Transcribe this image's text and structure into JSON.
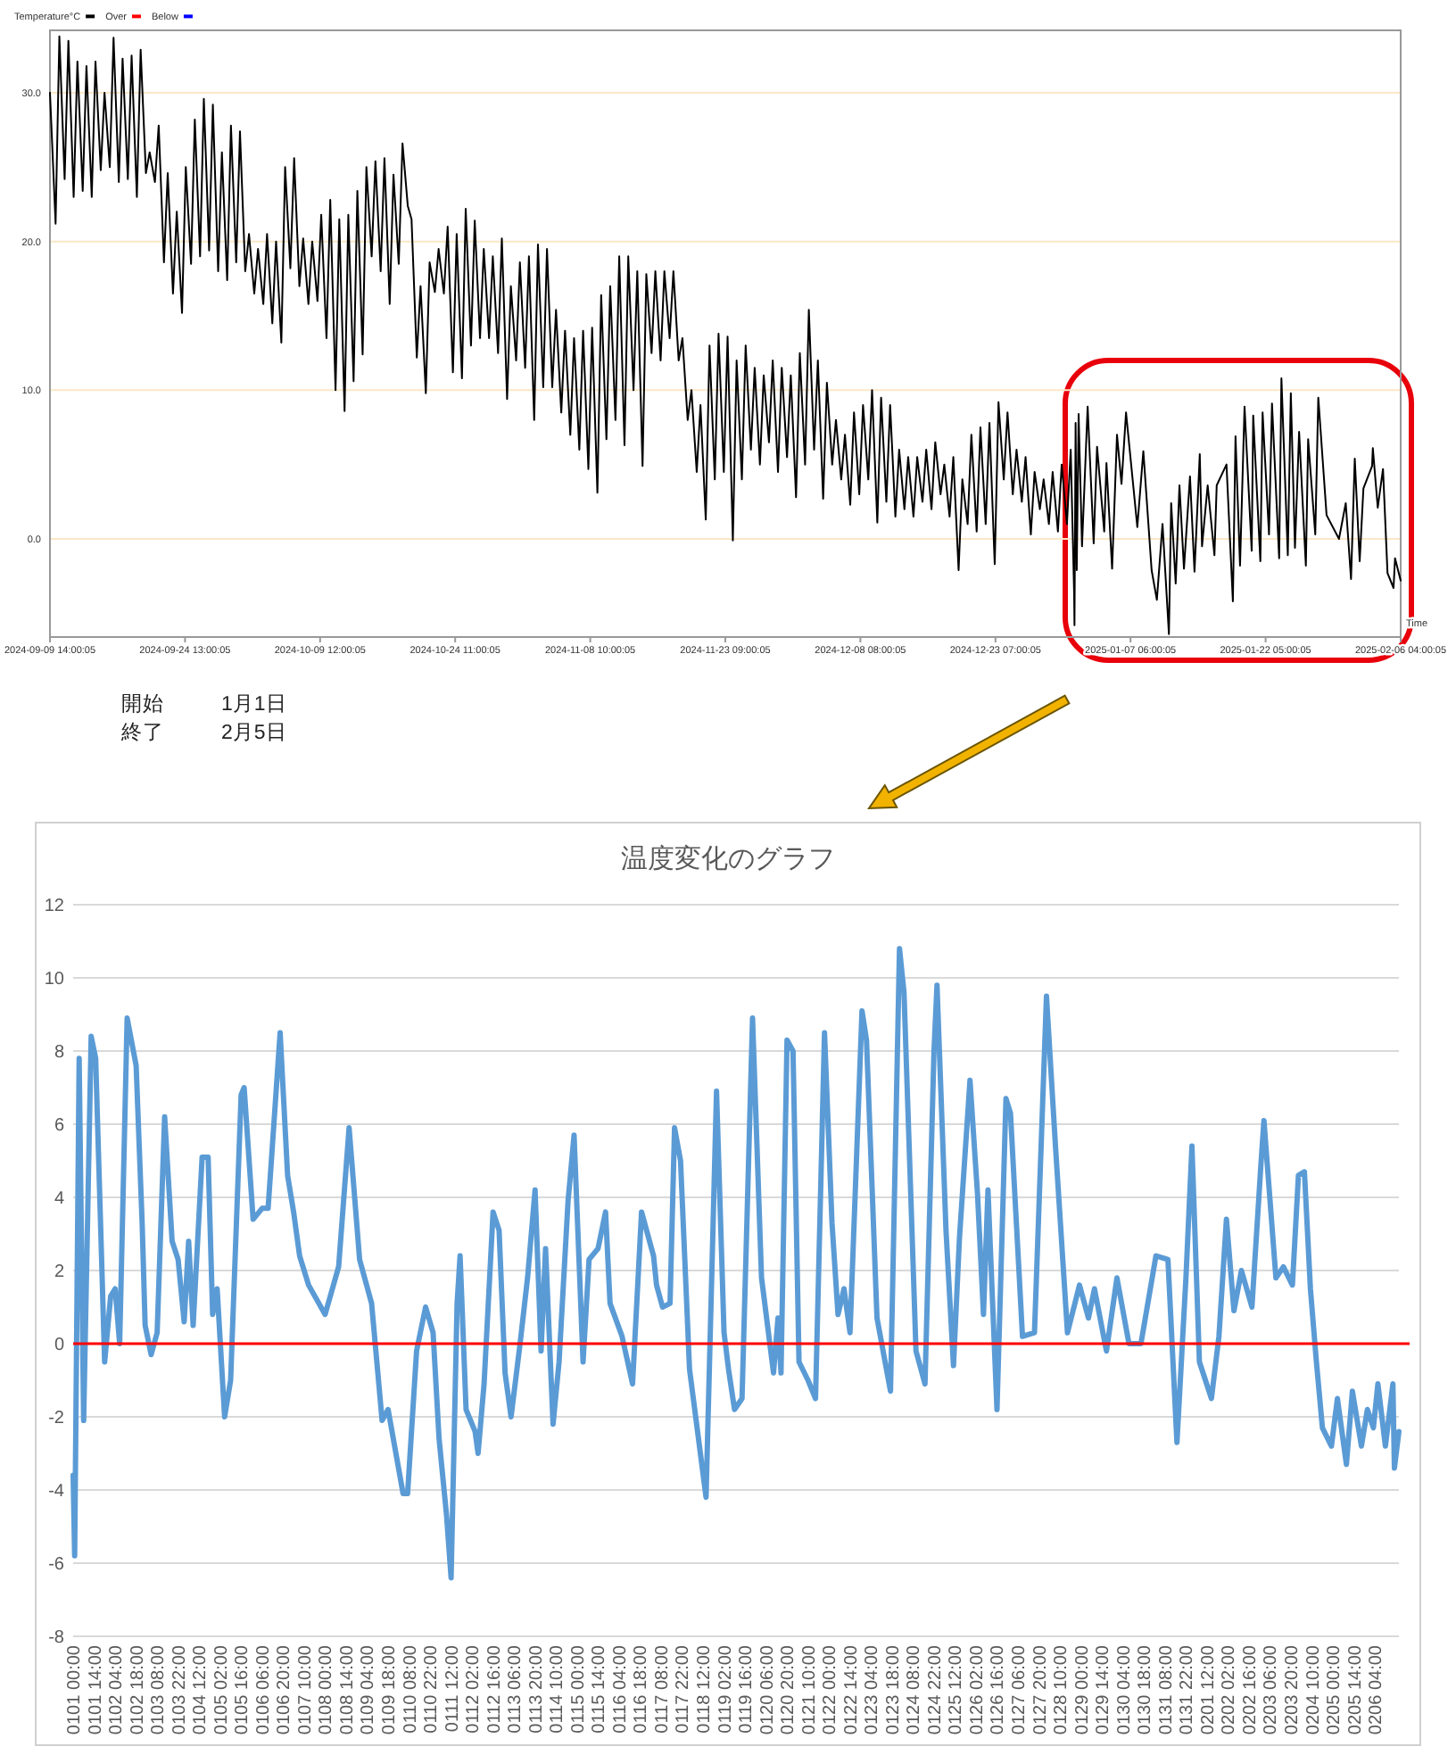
{
  "chart_data": [
    {
      "type": "line",
      "legend": "top left",
      "xlabel": "Time",
      "grid": "y",
      "xlim": [
        "2024-09-09T14:00",
        "2025-02-06T04:00"
      ],
      "xticks": [
        {
          "value": "2024-09-09T14:00",
          "label": "2024-09-09 14:00:05"
        },
        {
          "value": "2024-09-24T13:00",
          "label": "2024-09-24 13:00:05"
        },
        {
          "value": "2024-10-09T12:00",
          "label": "2024-10-09 12:00:05"
        },
        {
          "value": "2024-10-24T11:00",
          "label": "2024-10-24 11:00:05"
        },
        {
          "value": "2024-11-08T10:00",
          "label": "2024-11-08 10:00:05"
        },
        {
          "value": "2024-11-23T09:00",
          "label": "2024-11-23 09:00:05"
        },
        {
          "value": "2024-12-08T08:00",
          "label": "2024-12-08 08:00:05"
        },
        {
          "value": "2024-12-23T07:00",
          "label": "2024-12-23 07:00:05"
        },
        {
          "value": "2025-01-07T06:00",
          "label": "2025-01-07 06:00:05"
        },
        {
          "value": "2025-01-22T05:00",
          "label": "2025-01-22 05:00:05"
        },
        {
          "value": "2025-02-06T04:00",
          "label": "2025-02-06 04:00:05"
        }
      ],
      "ylim": [
        -6.6,
        34.2
      ],
      "yticks": [
        {
          "value": 0,
          "label": "0.0"
        },
        {
          "value": 10,
          "label": "10.0"
        },
        {
          "value": 20,
          "label": "20.0"
        },
        {
          "value": 30,
          "label": "30.0"
        }
      ],
      "series": [
        {
          "name": "Temperature°C",
          "color": "#000000",
          "x": [
            "2024-09-09T14:00",
            "2024-09-10T05:00",
            "2024-09-10T15:00",
            "2024-09-11T05:00",
            "2024-09-11T15:00",
            "2024-09-12T05:00",
            "2024-09-12T15:00",
            "2024-09-13T05:00",
            "2024-09-13T15:00",
            "2024-09-14T05:00",
            "2024-09-14T15:00",
            "2024-09-15T05:00",
            "2024-09-15T15:00",
            "2024-09-16T05:00",
            "2024-09-16T15:00",
            "2024-09-17T05:00",
            "2024-09-17T15:00",
            "2024-09-18T05:00",
            "2024-09-18T15:00",
            "2024-09-19T05:00",
            "2024-09-19T15:00",
            "2024-09-20T05:00",
            "2024-09-20T15:00",
            "2024-09-21T05:00",
            "2024-09-21T15:00",
            "2024-09-22T05:00",
            "2024-09-22T15:00",
            "2024-09-23T05:00",
            "2024-09-23T15:00",
            "2024-09-24T05:00",
            "2024-09-24T15:00",
            "2024-09-25T05:00",
            "2024-09-25T15:00",
            "2024-09-26T05:00",
            "2024-09-26T15:00",
            "2024-09-27T05:00",
            "2024-09-27T15:00",
            "2024-09-28T05:00",
            "2024-09-28T15:00",
            "2024-09-29T05:00",
            "2024-09-29T15:00",
            "2024-09-30T05:00",
            "2024-09-30T15:00",
            "2024-10-01T05:00",
            "2024-10-01T15:00",
            "2024-10-02T05:00",
            "2024-10-02T15:00",
            "2024-10-03T05:00",
            "2024-10-03T15:00",
            "2024-10-04T05:00",
            "2024-10-04T15:00",
            "2024-10-05T05:00",
            "2024-10-05T15:00",
            "2024-10-06T05:00",
            "2024-10-06T15:00",
            "2024-10-07T05:00",
            "2024-10-07T15:00",
            "2024-10-08T05:00",
            "2024-10-08T15:00",
            "2024-10-09T05:00",
            "2024-10-09T15:00",
            "2024-10-10T05:00",
            "2024-10-10T15:00",
            "2024-10-11T05:00",
            "2024-10-11T15:00",
            "2024-10-12T05:00",
            "2024-10-12T15:00",
            "2024-10-13T05:00",
            "2024-10-13T15:00",
            "2024-10-14T05:00",
            "2024-10-14T15:00",
            "2024-10-15T05:00",
            "2024-10-15T15:00",
            "2024-10-16T05:00",
            "2024-10-16T15:00",
            "2024-10-17T05:00",
            "2024-10-17T15:00",
            "2024-10-18T05:00",
            "2024-10-18T15:00",
            "2024-10-19T05:00",
            "2024-10-19T15:00",
            "2024-10-20T05:00",
            "2024-10-20T15:00",
            "2024-10-21T05:00",
            "2024-10-21T15:00",
            "2024-10-22T05:00",
            "2024-10-22T15:00",
            "2024-10-23T05:00",
            "2024-10-23T15:00",
            "2024-10-24T05:00",
            "2024-10-24T15:00",
            "2024-10-25T05:00",
            "2024-10-25T15:00",
            "2024-10-26T05:00",
            "2024-10-26T15:00",
            "2024-10-27T05:00",
            "2024-10-27T15:00",
            "2024-10-28T05:00",
            "2024-10-28T15:00",
            "2024-10-29T05:00",
            "2024-10-29T15:00",
            "2024-10-30T05:00",
            "2024-10-30T15:00",
            "2024-10-31T05:00",
            "2024-10-31T15:00",
            "2024-11-01T05:00",
            "2024-11-01T15:00",
            "2024-11-02T05:00",
            "2024-11-02T15:00",
            "2024-11-03T05:00",
            "2024-11-03T15:00",
            "2024-11-04T05:00",
            "2024-11-04T15:00",
            "2024-11-05T05:00",
            "2024-11-05T15:00",
            "2024-11-06T05:00",
            "2024-11-06T15:00",
            "2024-11-07T05:00",
            "2024-11-07T15:00",
            "2024-11-08T05:00",
            "2024-11-08T15:00",
            "2024-11-09T05:00",
            "2024-11-09T15:00",
            "2024-11-10T05:00",
            "2024-11-10T15:00",
            "2024-11-11T05:00",
            "2024-11-11T15:00",
            "2024-11-12T05:00",
            "2024-11-12T15:00",
            "2024-11-13T05:00",
            "2024-11-13T15:00",
            "2024-11-14T05:00",
            "2024-11-14T15:00",
            "2024-11-15T05:00",
            "2024-11-15T15:00",
            "2024-11-16T05:00",
            "2024-11-16T15:00",
            "2024-11-17T05:00",
            "2024-11-17T15:00",
            "2024-11-18T05:00",
            "2024-11-18T15:00",
            "2024-11-19T05:00",
            "2024-11-19T15:00",
            "2024-11-20T05:00",
            "2024-11-20T15:00",
            "2024-11-21T05:00",
            "2024-11-21T15:00",
            "2024-11-22T05:00",
            "2024-11-22T15:00",
            "2024-11-23T05:00",
            "2024-11-23T15:00",
            "2024-11-24T05:00",
            "2024-11-24T15:00",
            "2024-11-25T05:00",
            "2024-11-25T15:00",
            "2024-11-26T05:00",
            "2024-11-26T15:00",
            "2024-11-27T05:00",
            "2024-11-27T15:00",
            "2024-11-28T05:00",
            "2024-11-28T15:00",
            "2024-11-29T05:00",
            "2024-11-29T15:00",
            "2024-11-30T05:00",
            "2024-11-30T15:00",
            "2024-12-01T05:00",
            "2024-12-01T15:00",
            "2024-12-02T05:00",
            "2024-12-02T15:00",
            "2024-12-03T05:00",
            "2024-12-03T15:00",
            "2024-12-04T05:00",
            "2024-12-04T15:00",
            "2024-12-05T05:00",
            "2024-12-05T15:00",
            "2024-12-06T05:00",
            "2024-12-06T15:00",
            "2024-12-07T05:00",
            "2024-12-07T15:00",
            "2024-12-08T05:00",
            "2024-12-08T15:00",
            "2024-12-09T05:00",
            "2024-12-09T15:00",
            "2024-12-10T05:00",
            "2024-12-10T15:00",
            "2024-12-11T05:00",
            "2024-12-11T15:00",
            "2024-12-12T05:00",
            "2024-12-12T15:00",
            "2024-12-13T05:00",
            "2024-12-13T15:00",
            "2024-12-14T05:00",
            "2024-12-14T15:00",
            "2024-12-15T05:00",
            "2024-12-15T15:00",
            "2024-12-16T05:00",
            "2024-12-16T15:00",
            "2024-12-17T05:00",
            "2024-12-17T15:00",
            "2024-12-18T05:00",
            "2024-12-18T15:00",
            "2024-12-19T05:00",
            "2024-12-19T15:00",
            "2024-12-20T05:00",
            "2024-12-20T15:00",
            "2024-12-21T05:00",
            "2024-12-21T15:00",
            "2024-12-22T05:00",
            "2024-12-22T15:00",
            "2024-12-23T05:00",
            "2024-12-23T15:00",
            "2024-12-24T05:00",
            "2024-12-24T15:00",
            "2024-12-25T05:00",
            "2024-12-25T15:00",
            "2024-12-26T05:00",
            "2024-12-26T15:00",
            "2024-12-27T05:00",
            "2024-12-27T15:00",
            "2024-12-28T05:00",
            "2024-12-28T15:00",
            "2024-12-29T05:00",
            "2024-12-29T15:00",
            "2024-12-30T05:00",
            "2024-12-30T15:00",
            "2024-12-31T05:00",
            "2024-12-31T15:00",
            "2025-01-01T00:00",
            "2025-01-01T01:00",
            "2025-01-01T04:00",
            "2025-01-01T07:00",
            "2025-01-01T12:00",
            "2025-01-01T21:00",
            "2025-01-02T12:00",
            "2025-01-03T04:00",
            "2025-01-03T13:00",
            "2025-01-04T08:00",
            "2025-01-04T14:00",
            "2025-01-05T05:00",
            "2025-01-05T18:00",
            "2025-01-06T06:00",
            "2025-01-06T18:00",
            "2025-01-08T00:00",
            "2025-01-08T16:00",
            "2025-01-09T14:00",
            "2025-01-10T04:00",
            "2025-01-10T19:00",
            "2025-01-11T12:00",
            "2025-01-11T18:00",
            "2025-01-12T06:00",
            "2025-01-12T16:00",
            "2025-01-13T04:00",
            "2025-01-13T20:00",
            "2025-01-14T08:00",
            "2025-01-14T22:00",
            "2025-01-15T04:00",
            "2025-01-15T19:00",
            "2025-01-16T13:00",
            "2025-01-16T19:00",
            "2025-01-17T21:00",
            "2025-01-18T14:00",
            "2025-01-18T21:00",
            "2025-01-19T09:00",
            "2025-01-19T21:00",
            "2025-01-20T16:00",
            "2025-01-20T20:00",
            "2025-01-21T15:00",
            "2025-01-21T21:00",
            "2025-01-22T14:00",
            "2025-01-22T22:00",
            "2025-01-23T17:00",
            "2025-01-23T23:00",
            "2025-01-24T16:00",
            "2025-01-25T00:00",
            "2025-01-25T11:00",
            "2025-01-25T22:00",
            "2025-01-26T16:00",
            "2025-01-26T22:00",
            "2025-01-27T17:00",
            "2025-01-28T01:00",
            "2025-01-28T23:00",
            "2025-01-30T08:00",
            "2025-01-31T02:00",
            "2025-01-31T16:00",
            "2025-02-01T02:00",
            "2025-02-01T15:00",
            "2025-02-02T01:00",
            "2025-02-03T00:00",
            "2025-02-03T02:00",
            "2025-02-03T15:00",
            "2025-02-04T05:00",
            "2025-02-04T17:00",
            "2025-02-05T09:00",
            "2025-02-05T13:00",
            "2025-02-06T04:00"
          ],
          "values": [
            30.0,
            21.2,
            33.8,
            24.2,
            33.5,
            23.0,
            32.1,
            23.4,
            31.8,
            23.0,
            32.1,
            24.8,
            30.0,
            25.0,
            33.7,
            24.0,
            32.3,
            24.2,
            32.5,
            23.0,
            32.9,
            24.6,
            26.0,
            24.0,
            27.8,
            18.6,
            24.6,
            16.5,
            22.0,
            15.2,
            25.0,
            18.5,
            28.2,
            19.0,
            29.6,
            19.4,
            29.2,
            18.0,
            26.0,
            17.4,
            27.8,
            18.6,
            27.4,
            18.0,
            20.5,
            16.5,
            19.5,
            15.8,
            20.5,
            14.5,
            20.0,
            13.2,
            25.0,
            18.2,
            25.6,
            17.0,
            20.2,
            15.8,
            20.0,
            16.0,
            21.8,
            13.5,
            22.8,
            10.0,
            21.5,
            8.6,
            21.8,
            10.6,
            23.4,
            12.4,
            25.0,
            19.0,
            25.4,
            18.0,
            25.6,
            15.8,
            24.5,
            18.5,
            26.6,
            22.4,
            21.5,
            12.2,
            17.0,
            9.8,
            18.6,
            16.6,
            19.5,
            16.5,
            21.0,
            11.2,
            20.5,
            10.8,
            22.2,
            13.0,
            21.4,
            13.5,
            19.5,
            13.5,
            19.0,
            12.5,
            20.2,
            9.4,
            17.0,
            12.0,
            18.6,
            11.5,
            19.0,
            8.0,
            19.8,
            10.2,
            19.5,
            10.2,
            15.4,
            8.5,
            14.0,
            7.0,
            13.5,
            6.0,
            14.0,
            4.7,
            14.2,
            3.1,
            16.4,
            6.7,
            17.0,
            8.0,
            19.0,
            6.3,
            19.0,
            10.0,
            18.0,
            4.9,
            17.8,
            12.5,
            18.0,
            12.0,
            18.0,
            13.5,
            18.0,
            12.0,
            13.5,
            8.0,
            10.0,
            4.5,
            9.0,
            1.3,
            13.0,
            4.0,
            13.8,
            4.5,
            13.6,
            -0.1,
            12.0,
            4.0,
            13.0,
            6.0,
            11.5,
            5.0,
            11.0,
            6.5,
            12.0,
            4.5,
            11.5,
            5.5,
            11.0,
            2.8,
            12.5,
            5.0,
            15.4,
            6.0,
            12.0,
            2.7,
            10.5,
            5.0,
            8.0,
            4.0,
            7.0,
            2.3,
            8.5,
            3.0,
            9.0,
            4.0,
            10.0,
            1.1,
            9.5,
            2.5,
            9.0,
            1.5,
            6.0,
            2.0,
            5.5,
            1.5,
            5.5,
            2.5,
            6.0,
            2.0,
            6.5,
            3.0,
            5.0,
            1.5,
            5.5,
            -2.1,
            4.0,
            1.0,
            7.0,
            0.5,
            7.5,
            1.0,
            7.8,
            -1.7,
            9.2,
            4.0,
            8.5,
            3.0,
            6.0,
            2.5,
            5.5,
            0.3,
            4.5,
            2.0,
            4.0,
            1.0,
            4.5,
            0.5,
            5.0,
            1.0,
            6.0,
            -3.6,
            -5.8,
            7.8,
            -2.1,
            8.4,
            -0.5,
            8.9,
            -0.3,
            6.2,
            0.5,
            5.1,
            -2.0,
            7.0,
            3.7,
            8.5,
            0.8,
            5.9,
            -2.1,
            -4.1,
            1.0,
            -6.4,
            2.4,
            -3.0,
            3.6,
            -2.0,
            4.2,
            -2.2,
            5.7,
            -0.5,
            3.6,
            -1.1,
            3.6,
            5.0,
            -4.2,
            6.9,
            -1.8,
            8.9,
            -0.8,
            8.3,
            -1.5,
            8.5,
            0.3,
            9.1,
            -1.3,
            10.8,
            -1.1,
            9.8,
            -0.6,
            7.2,
            -1.8,
            6.7,
            0.3,
            9.5,
            1.6,
            0.0,
            2.4,
            -2.7,
            5.4,
            -1.5,
            3.4,
            4.9,
            6.1,
            2.1,
            4.7,
            -2.3,
            -3.3,
            -1.3,
            -2.8
          ]
        },
        {
          "name": "Over",
          "color": "#ff0000"
        },
        {
          "name": "Below",
          "color": "#0000ff"
        }
      ]
    },
    {
      "type": "line",
      "title": "温度変化のグラフ",
      "grid": "y",
      "annotations": [
        "開始",
        "1月1日",
        "終了",
        "2月5日"
      ],
      "xlim": [
        "--01-01T00:00",
        "--02-06T20:00"
      ],
      "xticks": [
        {
          "value": "--01-01T00:00",
          "label": "0101 00:00"
        },
        {
          "value": "--01-01T14:00",
          "label": "0101 14:00"
        },
        {
          "value": "--01-02T04:00",
          "label": "0102 04:00"
        },
        {
          "value": "--01-02T18:00",
          "label": "0102 18:00"
        },
        {
          "value": "--01-03T08:00",
          "label": "0103 08:00"
        },
        {
          "value": "--01-03T22:00",
          "label": "0103 22:00"
        },
        {
          "value": "--01-04T12:00",
          "label": "0104 12:00"
        },
        {
          "value": "--01-05T02:00",
          "label": "0105 02:00"
        },
        {
          "value": "--01-05T16:00",
          "label": "0105 16:00"
        },
        {
          "value": "--01-06T06:00",
          "label": "0106 06:00"
        },
        {
          "value": "--01-06T20:00",
          "label": "0106 20:00"
        },
        {
          "value": "--01-07T10:00",
          "label": "0107 10:00"
        },
        {
          "value": "--01-08T00:00",
          "label": "0108 00:00"
        },
        {
          "value": "--01-08T14:00",
          "label": "0108 14:00"
        },
        {
          "value": "--01-09T04:00",
          "label": "0109 04:00"
        },
        {
          "value": "--01-09T18:00",
          "label": "0109 18:00"
        },
        {
          "value": "--01-10T08:00",
          "label": "0110 08:00"
        },
        {
          "value": "--01-10T22:00",
          "label": "0110 22:00"
        },
        {
          "value": "--01-11T12:00",
          "label": "0111 12:00"
        },
        {
          "value": "--01-12T02:00",
          "label": "0112 02:00"
        },
        {
          "value": "--01-12T16:00",
          "label": "0112 16:00"
        },
        {
          "value": "--01-13T06:00",
          "label": "0113 06:00"
        },
        {
          "value": "--01-13T20:00",
          "label": "0113 20:00"
        },
        {
          "value": "--01-14T10:00",
          "label": "0114 10:00"
        },
        {
          "value": "--01-15T00:00",
          "label": "0115 00:00"
        },
        {
          "value": "--01-15T14:00",
          "label": "0115 14:00"
        },
        {
          "value": "--01-16T04:00",
          "label": "0116 04:00"
        },
        {
          "value": "--01-16T18:00",
          "label": "0116 18:00"
        },
        {
          "value": "--01-17T08:00",
          "label": "0117 08:00"
        },
        {
          "value": "--01-17T22:00",
          "label": "0117 22:00"
        },
        {
          "value": "--01-18T12:00",
          "label": "0118 12:00"
        },
        {
          "value": "--01-19T02:00",
          "label": "0119 02:00"
        },
        {
          "value": "--01-19T16:00",
          "label": "0119 16:00"
        },
        {
          "value": "--01-20T06:00",
          "label": "0120 06:00"
        },
        {
          "value": "--01-20T20:00",
          "label": "0120 20:00"
        },
        {
          "value": "--01-21T10:00",
          "label": "0121 10:00"
        },
        {
          "value": "--01-22T00:00",
          "label": "0122 00:00"
        },
        {
          "value": "--01-22T14:00",
          "label": "0122 14:00"
        },
        {
          "value": "--01-23T04:00",
          "label": "0123 04:00"
        },
        {
          "value": "--01-23T18:00",
          "label": "0123 18:00"
        },
        {
          "value": "--01-24T08:00",
          "label": "0124 08:00"
        },
        {
          "value": "--01-24T22:00",
          "label": "0124 22:00"
        },
        {
          "value": "--01-25T12:00",
          "label": "0125 12:00"
        },
        {
          "value": "--01-26T02:00",
          "label": "0126 02:00"
        },
        {
          "value": "--01-26T16:00",
          "label": "0126 16:00"
        },
        {
          "value": "--01-27T06:00",
          "label": "0127 06:00"
        },
        {
          "value": "--01-27T20:00",
          "label": "0127 20:00"
        },
        {
          "value": "--01-28T10:00",
          "label": "0128 10:00"
        },
        {
          "value": "--01-29T00:00",
          "label": "0129 00:00"
        },
        {
          "value": "--01-29T14:00",
          "label": "0129 14:00"
        },
        {
          "value": "--01-30T04:00",
          "label": "0130 04:00"
        },
        {
          "value": "--01-30T18:00",
          "label": "0130 18:00"
        },
        {
          "value": "--01-31T08:00",
          "label": "0131 08:00"
        },
        {
          "value": "--01-31T22:00",
          "label": "0131 22:00"
        },
        {
          "value": "--02-01T12:00",
          "label": "0201 12:00"
        },
        {
          "value": "--02-02T02:00",
          "label": "0202 02:00"
        },
        {
          "value": "--02-02T16:00",
          "label": "0202 16:00"
        },
        {
          "value": "--02-03T06:00",
          "label": "0203 06:00"
        },
        {
          "value": "--02-03T20:00",
          "label": "0203 20:00"
        },
        {
          "value": "--02-04T10:00",
          "label": "0204 10:00"
        },
        {
          "value": "--02-05T00:00",
          "label": "0205 00:00"
        },
        {
          "value": "--02-05T14:00",
          "label": "0205 14:00"
        },
        {
          "value": "--02-06T04:00",
          "label": "0206 04:00"
        }
      ],
      "ylim": [
        -8,
        12
      ],
      "yticks": [
        -8,
        -6,
        -4,
        -2,
        0,
        2,
        4,
        6,
        8,
        10,
        12
      ],
      "ref_lines": [
        {
          "axis": "y",
          "value": 0,
          "color": "#ff0000"
        }
      ],
      "series": [
        {
          "color": "#5b9bd5",
          "x": [
            "--01-01T00:00",
            "--01-01T01:00",
            "--01-01T04:00",
            "--01-01T07:00",
            "--01-01T12:00",
            "--01-01T15:00",
            "--01-01T21:00",
            "--01-02T01:00",
            "--01-02T04:00",
            "--01-02T07:00",
            "--01-02T12:00",
            "--01-02T18:00",
            "--01-02T22:00",
            "--01-03T00:00",
            "--01-03T04:00",
            "--01-03T08:00",
            "--01-03T13:00",
            "--01-03T18:00",
            "--01-03T22:00",
            "--01-04T02:00",
            "--01-04T05:00",
            "--01-04T08:00",
            "--01-04T14:00",
            "--01-04T18:00",
            "--01-04T21:00",
            "--01-05T00:00",
            "--01-05T05:00",
            "--01-05T09:00",
            "--01-05T16:00",
            "--01-05T18:00",
            "--01-06T00:00",
            "--01-06T06:00",
            "--01-06T10:00",
            "--01-06T18:00",
            "--01-06T23:00",
            "--01-07T03:00",
            "--01-07T07:00",
            "--01-07T13:00",
            "--01-08T00:00",
            "--01-08T09:00",
            "--01-08T16:00",
            "--01-08T23:00",
            "--01-09T07:00",
            "--01-09T14:00",
            "--01-09T18:00",
            "--01-10T04:00",
            "--01-10T07:00",
            "--01-10T13:00",
            "--01-10T19:00",
            "--01-11T00:00",
            "--01-11T04:00",
            "--01-11T09:00",
            "--01-11T12:00",
            "--01-11T16:00",
            "--01-11T18:00",
            "--01-11T22:00",
            "--01-12T04:00",
            "--01-12T06:00",
            "--01-12T10:00",
            "--01-12T16:00",
            "--01-12T20:00",
            "--01-13T00:00",
            "--01-13T04:00",
            "--01-13T10:00",
            "--01-13T15:00",
            "--01-13T20:00",
            "--01-14T00:00",
            "--01-14T03:00",
            "--01-14T08:00",
            "--01-14T12:00",
            "--01-14T18:00",
            "--01-14T22:00",
            "--01-15T04:00",
            "--01-15T08:00",
            "--01-15T14:00",
            "--01-15T19:00",
            "--01-15T22:00",
            "--01-16T06:00",
            "--01-16T13:00",
            "--01-16T19:00",
            "--01-17T03:00",
            "--01-17T05:00",
            "--01-17T09:00",
            "--01-17T14:00",
            "--01-17T17:00",
            "--01-17T21:00",
            "--01-18T03:00",
            "--01-18T14:00",
            "--01-18T21:00",
            "--01-19T02:00",
            "--01-19T05:00",
            "--01-19T09:00",
            "--01-19T14:00",
            "--01-19T21:00",
            "--01-20T03:00",
            "--01-20T11:00",
            "--01-20T14:00",
            "--01-20T16:00",
            "--01-20T20:00",
            "--01-21T00:00",
            "--01-21T04:00",
            "--01-21T10:00",
            "--01-21T15:00",
            "--01-21T21:00",
            "--01-22T02:00",
            "--01-22T06:00",
            "--01-22T10:00",
            "--01-22T14:00",
            "--01-22T22:00",
            "--01-23T01:00",
            "--01-23T08:00",
            "--01-23T17:00",
            "--01-23T23:00",
            "--01-24T02:00",
            "--01-24T10:00",
            "--01-24T16:00",
            "--01-24T22:00",
            "--01-25T00:00",
            "--01-25T06:00",
            "--01-25T11:00",
            "--01-25T15:00",
            "--01-25T22:00",
            "--01-26T03:00",
            "--01-26T07:00",
            "--01-26T10:00",
            "--01-26T16:00",
            "--01-26T22:00",
            "--01-27T01:00",
            "--01-27T09:00",
            "--01-27T17:00",
            "--01-28T01:00",
            "--01-28T07:00",
            "--01-28T15:00",
            "--01-28T23:00",
            "--01-29T05:00",
            "--01-29T09:00",
            "--01-29T17:00",
            "--01-30T00:00",
            "--01-30T08:00",
            "--01-30T16:00",
            "--01-31T02:00",
            "--01-31T10:00",
            "--01-31T16:00",
            "--01-31T22:00",
            "--02-01T02:00",
            "--02-01T07:00",
            "--02-01T15:00",
            "--02-01T20:00",
            "--02-02T01:00",
            "--02-02T06:00",
            "--02-02T11:00",
            "--02-02T18:00",
            "--02-03T00:00",
            "--02-03T02:00",
            "--02-03T10:00",
            "--02-03T15:00",
            "--02-03T21:00",
            "--02-04T01:00",
            "--02-04T05:00",
            "--02-04T09:00",
            "--02-04T13:00",
            "--02-04T17:00",
            "--02-04T23:00",
            "--02-05T03:00",
            "--02-05T09:00",
            "--02-05T13:00",
            "--02-05T19:00",
            "--02-05T23:00",
            "--02-06T03:00",
            "--02-06T06:00",
            "--02-06T11:00",
            "--02-06T16:00",
            "--02-06T17:00",
            "--02-06T20:00"
          ],
          "values": [
            -3.6,
            -5.8,
            7.8,
            -2.1,
            8.4,
            7.8,
            -0.5,
            1.3,
            1.5,
            0.0,
            8.9,
            7.6,
            3.3,
            0.5,
            -0.3,
            0.3,
            6.2,
            2.8,
            2.3,
            0.6,
            2.8,
            0.5,
            5.1,
            5.1,
            0.8,
            1.5,
            -2.0,
            -1.0,
            6.8,
            7.0,
            3.4,
            3.7,
            3.7,
            8.5,
            4.6,
            3.6,
            2.4,
            1.6,
            0.8,
            2.1,
            5.9,
            2.3,
            1.1,
            -2.1,
            -1.8,
            -4.1,
            -4.1,
            -0.2,
            1.0,
            0.3,
            -2.6,
            -4.7,
            -6.4,
            1.1,
            2.4,
            -1.8,
            -2.4,
            -3.0,
            -1.1,
            3.6,
            3.1,
            -0.8,
            -2.0,
            0.0,
            1.8,
            4.2,
            -0.2,
            2.6,
            -2.2,
            -0.5,
            3.9,
            5.7,
            -0.5,
            2.3,
            2.6,
            3.6,
            1.1,
            0.2,
            -1.1,
            3.6,
            2.4,
            1.6,
            1.0,
            1.1,
            5.9,
            5.0,
            -0.7,
            -4.2,
            6.9,
            0.3,
            -0.7,
            -1.8,
            -1.5,
            8.9,
            1.8,
            -0.8,
            0.7,
            -0.8,
            8.3,
            8.0,
            -0.5,
            -1.0,
            -1.5,
            8.5,
            3.3,
            0.8,
            1.5,
            0.3,
            9.1,
            8.3,
            0.7,
            -1.3,
            10.8,
            9.6,
            -0.2,
            -1.1,
            8.0,
            9.8,
            3.1,
            -0.6,
            2.9,
            7.2,
            4.1,
            0.8,
            4.2,
            -1.8,
            6.7,
            6.3,
            0.2,
            0.3,
            9.5,
            5.4,
            0.3,
            1.6,
            0.7,
            1.5,
            -0.2,
            1.8,
            0.0,
            0.0,
            2.4,
            2.3,
            -2.7,
            1.8,
            5.4,
            -0.5,
            -1.5,
            0.2,
            3.4,
            0.9,
            2.0,
            1.0,
            4.9,
            6.1,
            1.8,
            2.1,
            1.6,
            4.6,
            4.7,
            1.5,
            -0.5,
            -2.3,
            -2.8,
            -1.5,
            -3.3,
            -1.3,
            -2.8,
            -1.8,
            -2.3,
            -1.1,
            -2.8,
            -1.1,
            -3.4,
            -2.4
          ]
        }
      ]
    }
  ]
}
